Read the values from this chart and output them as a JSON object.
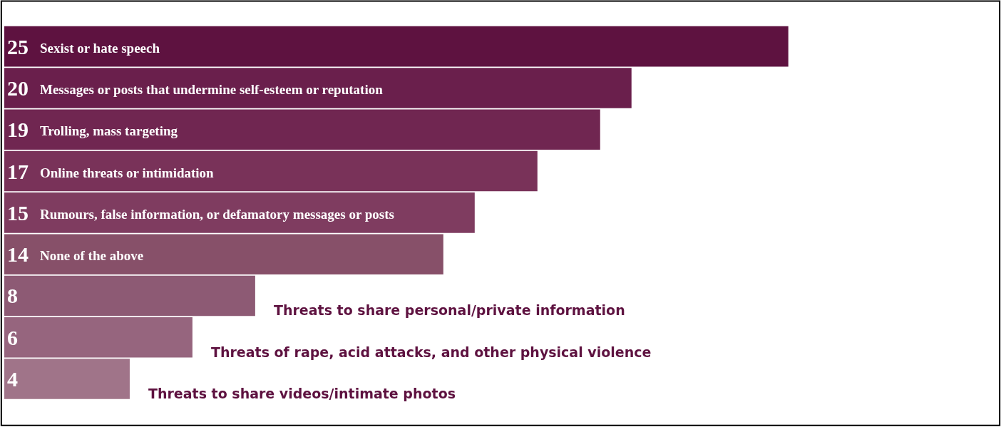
{
  "chart_data": {
    "type": "bar",
    "orientation": "horizontal",
    "categories": [
      "Sexist or hate speech",
      "Messages or posts that undermine self-esteem or reputation",
      "Trolling, mass targeting",
      "Online threats or intimidation",
      "Rumours, false information, or defamatory messages or posts",
      "None of the above",
      "Threats to share personal/private information",
      "Threats of rape, acid attacks, and other physical violence",
      "Threats to share videos/intimate photos"
    ],
    "values": [
      25,
      20,
      19,
      17,
      15,
      14,
      8,
      6,
      4
    ],
    "colors": [
      "#5e1240",
      "#6a1f4c",
      "#702651",
      "#793259",
      "#7f3c60",
      "#875069",
      "#8d5a74",
      "#96657e",
      "#a07489"
    ],
    "data_labels": true
  }
}
